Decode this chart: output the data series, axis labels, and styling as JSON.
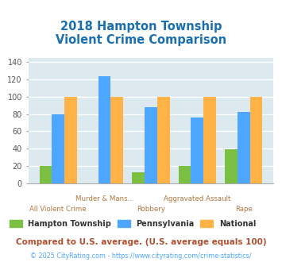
{
  "title_line1": "2018 Hampton Township",
  "title_line2": "Violent Crime Comparison",
  "categories": [
    "All Violent Crime",
    "Murder & Mans...",
    "Robbery",
    "Aggravated Assault",
    "Rape"
  ],
  "hampton": [
    20,
    0,
    13,
    20,
    39
  ],
  "pennsylvania": [
    80,
    124,
    88,
    76,
    82
  ],
  "national": [
    100,
    100,
    100,
    100,
    100
  ],
  "color_hampton": "#7bc043",
  "color_pennsylvania": "#4da6ff",
  "color_national": "#ffb347",
  "ylim": [
    0,
    145
  ],
  "yticks": [
    0,
    20,
    40,
    60,
    80,
    100,
    120,
    140
  ],
  "background_color": "#dce9ef",
  "grid_color": "#ffffff",
  "xlabel_top": [
    "Murder & Mans...",
    "Aggravated Assault"
  ],
  "xlabel_bottom": [
    "All Violent Crime",
    "Robbery",
    "Rape"
  ],
  "xlabel_top_positions": [
    1,
    3
  ],
  "xlabel_bottom_positions": [
    0,
    2,
    4
  ],
  "xlabel_color": "#b07840",
  "title_color": "#1a6faf",
  "legend_label_hampton": "Hampton Township",
  "legend_label_pennsylvania": "Pennsylvania",
  "legend_label_national": "National",
  "footnote1": "Compared to U.S. average. (U.S. average equals 100)",
  "footnote2": "© 2025 CityRating.com - https://www.cityrating.com/crime-statistics/",
  "footnote1_color": "#b05030",
  "footnote2_color": "#4da6ff",
  "legend_text_color": "#333333"
}
